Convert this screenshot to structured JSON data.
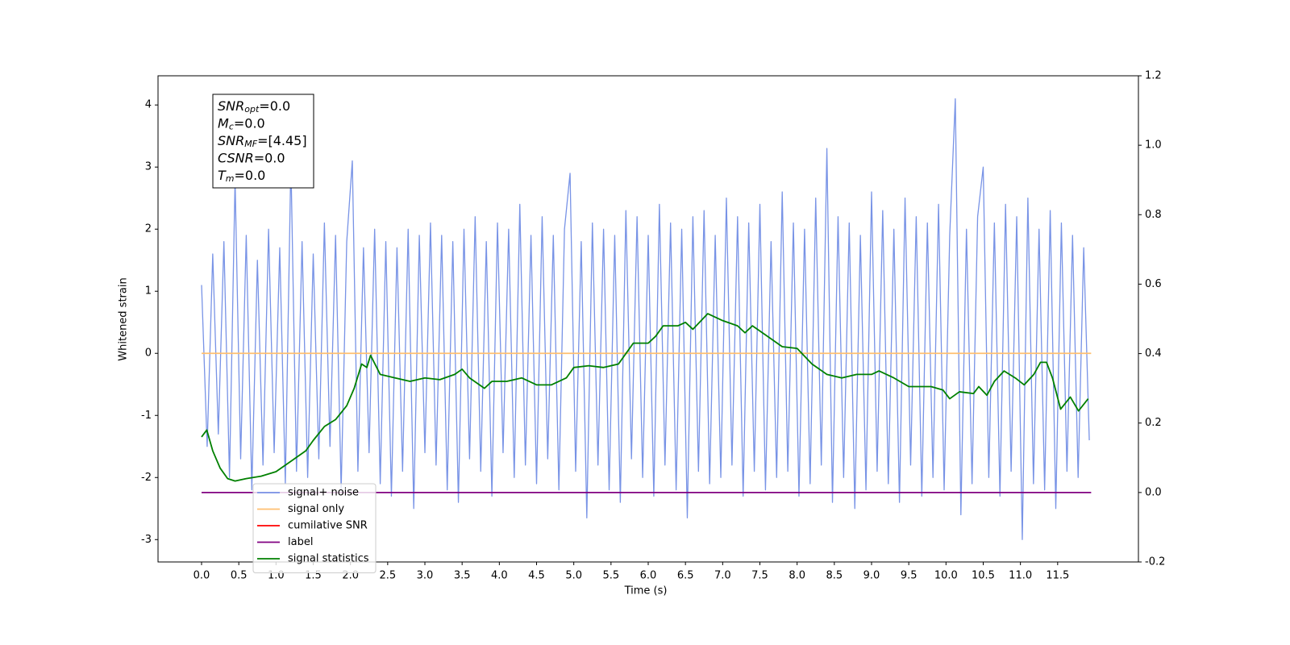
{
  "chart_data": {
    "type": "line",
    "xlabel": "Time (s)",
    "ylabel": "Whitened strain",
    "xlim": [
      -0.585,
      12.585
    ],
    "ylim": [
      -3.36,
      4.47
    ],
    "y2lim": [
      -0.2,
      1.2
    ],
    "xticks": [
      {
        "value": 0,
        "label": "0.0"
      },
      0.5,
      {
        "value": 1,
        "label": "1.0"
      },
      1.5,
      {
        "value": 2,
        "label": "2.0"
      },
      2.5,
      {
        "value": 3,
        "label": "3.0"
      },
      3.5,
      {
        "value": 4,
        "label": "4.0"
      },
      4.5,
      {
        "value": 5,
        "label": "5.0"
      },
      5.5,
      {
        "value": 6,
        "label": "6.0"
      },
      6.5,
      {
        "value": 7,
        "label": "7.0"
      },
      7.5,
      {
        "value": 8,
        "label": "8.0"
      },
      8.5,
      {
        "value": 9,
        "label": "9.0"
      },
      9.5,
      {
        "value": 10,
        "label": "10.0"
      },
      10.5,
      {
        "value": 11,
        "label": "11.0"
      },
      11.5
    ],
    "yticks": [
      -3,
      -2,
      -1,
      0,
      1,
      2,
      3,
      4
    ],
    "y2ticks": [
      -0.2,
      {
        "value": 0,
        "label": "0.0"
      },
      0.2,
      0.4,
      0.6,
      0.8,
      {
        "value": 1,
        "label": "1.0"
      },
      1.2
    ],
    "legend": "lower left",
    "annotation": [
      {
        "name": "SNR",
        "sub": "opt",
        "text": "=0.0"
      },
      {
        "name": "M",
        "sub": "c",
        "text": "=0.0"
      },
      {
        "name": "SNR",
        "sub": "MF",
        "text": "=[4.45]"
      },
      {
        "name": "CSNR",
        "sub": "",
        "text": "=0.0"
      },
      {
        "name": "T",
        "sub": "m",
        "text": "=0.0"
      }
    ],
    "series": [
      {
        "name": "signal+ noise",
        "color": "#7893e6",
        "x": [
          0,
          0.075,
          0.15,
          0.225,
          0.3,
          0.375,
          0.45,
          0.525,
          0.6,
          0.675,
          0.75,
          0.825,
          0.9,
          0.975,
          1.05,
          1.125,
          1.2,
          1.275,
          1.35,
          1.425,
          1.5,
          1.575,
          1.65,
          1.725,
          1.8,
          1.875,
          1.95,
          2.025,
          2.1,
          2.175,
          2.25,
          2.325,
          2.4,
          2.475,
          2.55,
          2.625,
          2.7,
          2.775,
          2.85,
          2.925,
          3,
          3.075,
          3.15,
          3.225,
          3.3,
          3.375,
          3.45,
          3.525,
          3.6,
          3.675,
          3.75,
          3.825,
          3.9,
          3.975,
          4.05,
          4.125,
          4.2,
          4.275,
          4.35,
          4.425,
          4.5,
          4.575,
          4.65,
          4.725,
          4.8,
          4.875,
          4.95,
          5.025,
          5.1,
          5.175,
          5.25,
          5.325,
          5.4,
          5.475,
          5.55,
          5.625,
          5.7,
          5.775,
          5.85,
          5.925,
          6,
          6.075,
          6.15,
          6.225,
          6.3,
          6.375,
          6.45,
          6.525,
          6.6,
          6.675,
          6.75,
          6.825,
          6.9,
          6.975,
          7.05,
          7.125,
          7.2,
          7.275,
          7.35,
          7.425,
          7.5,
          7.575,
          7.65,
          7.725,
          7.8,
          7.875,
          7.95,
          8.025,
          8.1,
          8.175,
          8.25,
          8.325,
          8.4,
          8.475,
          8.55,
          8.625,
          8.7,
          8.775,
          8.85,
          8.925,
          9,
          9.075,
          9.15,
          9.225,
          9.3,
          9.375,
          9.45,
          9.525,
          9.6,
          9.675,
          9.75,
          9.825,
          9.9,
          9.975,
          10.05,
          10.125,
          10.2,
          10.275,
          10.35,
          10.425,
          10.5,
          10.575,
          10.65,
          10.725,
          10.8,
          10.875,
          10.95,
          11.025,
          11.1,
          11.175,
          11.25,
          11.325,
          11.4,
          11.475,
          11.55,
          11.625,
          11.7,
          11.775,
          11.85,
          11.925
        ],
        "values": [
          1.1,
          -1.5,
          1.6,
          -1.3,
          1.8,
          -2.0,
          2.8,
          -1.7,
          1.9,
          -2.2,
          1.5,
          -1.8,
          2.0,
          -1.6,
          1.7,
          -2.1,
          3.1,
          -1.9,
          1.8,
          -2.0,
          1.6,
          -1.7,
          2.1,
          -1.5,
          1.9,
          -2.2,
          1.8,
          3.1,
          -1.9,
          1.7,
          -1.6,
          2.0,
          -2.1,
          1.8,
          -2.3,
          1.7,
          -1.9,
          2.0,
          -2.5,
          1.9,
          -1.6,
          2.1,
          -1.8,
          1.9,
          -2.2,
          1.8,
          -2.4,
          2.0,
          -1.7,
          2.2,
          -1.9,
          1.8,
          -2.3,
          2.1,
          -1.6,
          2.0,
          -2.0,
          2.4,
          -1.8,
          1.9,
          -2.1,
          2.2,
          -1.7,
          1.9,
          -2.2,
          2.0,
          2.9,
          -1.9,
          1.8,
          -2.65,
          2.1,
          -1.8,
          2.0,
          -2.2,
          1.9,
          -2.4,
          2.3,
          -1.7,
          2.2,
          -2.0,
          1.9,
          -2.3,
          2.4,
          -1.8,
          2.1,
          -2.2,
          2.0,
          -2.65,
          2.2,
          -1.9,
          2.3,
          -2.1,
          1.9,
          -2.0,
          2.5,
          -1.8,
          2.2,
          -2.3,
          2.1,
          -1.9,
          2.4,
          -2.2,
          1.8,
          -2.0,
          2.6,
          -1.9,
          2.1,
          -2.3,
          2.0,
          -2.1,
          2.5,
          -1.8,
          3.3,
          -2.4,
          2.2,
          -2.0,
          2.1,
          -2.5,
          1.9,
          -2.2,
          2.6,
          -1.9,
          2.3,
          -2.1,
          2.0,
          -2.4,
          2.5,
          -1.8,
          2.2,
          -2.3,
          2.1,
          -2.0,
          2.4,
          -2.2,
          1.9,
          4.1,
          -2.6,
          2.0,
          -2.1,
          2.2,
          3.0,
          -2.0,
          2.1,
          -2.3,
          2.4,
          -1.9,
          2.2,
          -3.0,
          2.5,
          -2.1,
          2.0,
          -2.2,
          2.3,
          -2.5,
          2.1,
          -1.9,
          1.9,
          -2.0,
          1.7,
          -1.4
        ]
      },
      {
        "name": "signal only",
        "color": "#ffbf70",
        "x": [
          0,
          11.95
        ],
        "values": [
          0,
          0
        ]
      },
      {
        "name": "cumilative SNR",
        "color": "#ff0000",
        "x": [
          0,
          11.95
        ],
        "values": [
          null,
          null
        ]
      },
      {
        "name": "label",
        "color": "#800080",
        "axis": "y2",
        "x": [
          0,
          11.95
        ],
        "values": [
          0,
          0
        ]
      },
      {
        "name": "signal statistics",
        "color": "#008000",
        "axis": "y2",
        "x": [
          0,
          0.07,
          0.15,
          0.25,
          0.35,
          0.45,
          0.6,
          0.8,
          1.0,
          1.2,
          1.4,
          1.5,
          1.65,
          1.8,
          1.95,
          2.05,
          2.15,
          2.22,
          2.27,
          2.4,
          2.6,
          2.8,
          3.0,
          3.2,
          3.4,
          3.5,
          3.6,
          3.8,
          3.9,
          4.1,
          4.3,
          4.5,
          4.7,
          4.9,
          5.0,
          5.2,
          5.4,
          5.6,
          5.7,
          5.8,
          6.0,
          6.1,
          6.2,
          6.4,
          6.5,
          6.6,
          6.8,
          7.0,
          7.2,
          7.3,
          7.4,
          7.6,
          7.8,
          8.0,
          8.2,
          8.4,
          8.6,
          8.8,
          9.0,
          9.1,
          9.3,
          9.5,
          9.8,
          9.96,
          10.05,
          10.18,
          10.37,
          10.44,
          10.55,
          10.65,
          10.78,
          10.93,
          11.05,
          11.18,
          11.27,
          11.35,
          11.43,
          11.54,
          11.67,
          11.78,
          11.91
        ],
        "values": [
          0.16,
          0.18,
          0.12,
          0.07,
          0.04,
          0.033,
          0.04,
          0.047,
          0.06,
          0.09,
          0.12,
          0.15,
          0.19,
          0.21,
          0.25,
          0.3,
          0.37,
          0.36,
          0.395,
          0.34,
          0.33,
          0.32,
          0.33,
          0.325,
          0.34,
          0.355,
          0.33,
          0.3,
          0.32,
          0.32,
          0.33,
          0.31,
          0.31,
          0.33,
          0.36,
          0.365,
          0.36,
          0.37,
          0.4,
          0.43,
          0.43,
          0.45,
          0.48,
          0.48,
          0.49,
          0.47,
          0.515,
          0.495,
          0.48,
          0.46,
          0.48,
          0.45,
          0.42,
          0.415,
          0.37,
          0.34,
          0.33,
          0.34,
          0.34,
          0.35,
          0.33,
          0.305,
          0.305,
          0.295,
          0.27,
          0.29,
          0.285,
          0.305,
          0.28,
          0.32,
          0.35,
          0.33,
          0.31,
          0.34,
          0.375,
          0.375,
          0.33,
          0.24,
          0.275,
          0.235,
          0.27
        ]
      }
    ]
  }
}
